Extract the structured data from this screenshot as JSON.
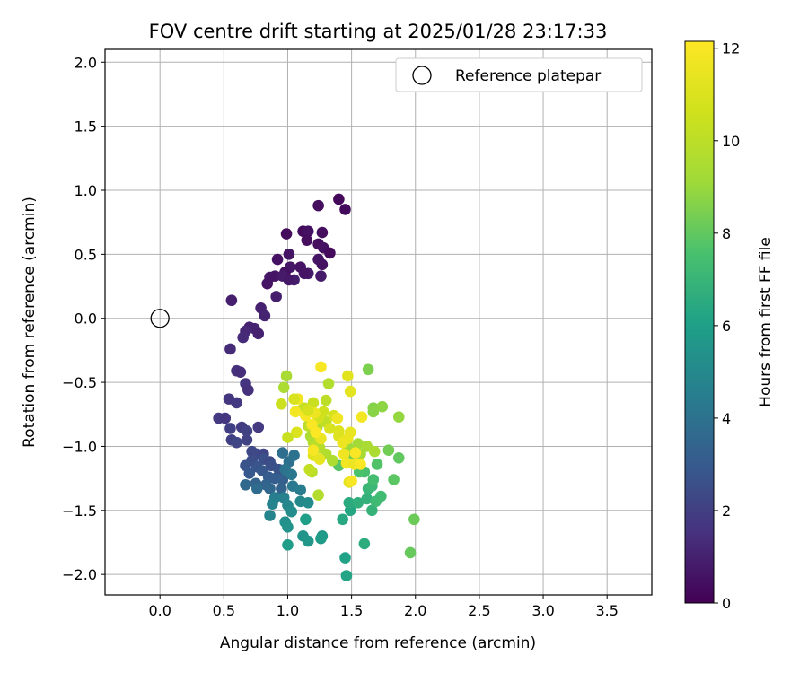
{
  "chart_data": {
    "type": "scatter",
    "title": "FOV centre drift starting at 2025/01/28 23:17:33",
    "xlabel": "Angular distance from reference (arcmin)",
    "ylabel": "Rotation from reference (arcmin)",
    "xlim": [
      -0.43,
      3.85
    ],
    "ylim": [
      -2.16,
      2.1
    ],
    "xticks": [
      0.0,
      0.5,
      1.0,
      1.5,
      2.0,
      2.5,
      3.0,
      3.5
    ],
    "xtick_labels": [
      "0.0",
      "0.5",
      "1.0",
      "1.5",
      "2.0",
      "2.5",
      "3.0",
      "3.5"
    ],
    "yticks": [
      -2.0,
      -1.5,
      -1.0,
      -0.5,
      0.0,
      0.5,
      1.0,
      1.5,
      2.0
    ],
    "ytick_labels": [
      "−2.0",
      "−1.5",
      "−1.0",
      "−0.5",
      "0.0",
      "0.5",
      "1.0",
      "1.5",
      "2.0"
    ],
    "grid": true,
    "legend": {
      "position": "top-right",
      "entries": [
        "Reference platepar"
      ]
    },
    "reference_point": {
      "x": 0.0,
      "y": 0.0,
      "label": "Reference platepar"
    },
    "colorbar": {
      "label": "Hours from first FF file",
      "colormap": "viridis",
      "range": [
        0,
        12.15
      ],
      "ticks": [
        0,
        2,
        4,
        6,
        8,
        10,
        12
      ],
      "tick_labels": [
        "0",
        "2",
        "4",
        "6",
        "8",
        "10",
        "12"
      ]
    },
    "points": [
      [
        1.4,
        0.93,
        0.2
      ],
      [
        1.45,
        0.85,
        0.3
      ],
      [
        1.24,
        0.88,
        0.4
      ],
      [
        1.12,
        0.68,
        0.3
      ],
      [
        1.16,
        0.68,
        0.5
      ],
      [
        1.27,
        0.67,
        0.4
      ],
      [
        0.99,
        0.66,
        0.3
      ],
      [
        1.15,
        0.61,
        0.4
      ],
      [
        1.24,
        0.58,
        0.4
      ],
      [
        1.28,
        0.55,
        0.5
      ],
      [
        1.01,
        0.5,
        0.6
      ],
      [
        1.33,
        0.51,
        0.3
      ],
      [
        0.92,
        0.46,
        0.5
      ],
      [
        1.24,
        0.46,
        0.6
      ],
      [
        1.27,
        0.42,
        0.5
      ],
      [
        1.02,
        0.4,
        0.7
      ],
      [
        1.1,
        0.4,
        0.6
      ],
      [
        0.98,
        0.36,
        0.5
      ],
      [
        1.16,
        0.35,
        0.8
      ],
      [
        1.13,
        0.35,
        0.6
      ],
      [
        0.86,
        0.32,
        0.7
      ],
      [
        0.9,
        0.33,
        0.6
      ],
      [
        0.96,
        0.33,
        0.8
      ],
      [
        1.05,
        0.3,
        0.9
      ],
      [
        1.01,
        0.3,
        0.7
      ],
      [
        1.26,
        0.33,
        0.8
      ],
      [
        0.84,
        0.27,
        0.6
      ],
      [
        0.91,
        0.17,
        0.9
      ],
      [
        0.56,
        0.14,
        0.9
      ],
      [
        0.79,
        0.08,
        1.0
      ],
      [
        0.82,
        0.02,
        1.1
      ],
      [
        0.7,
        -0.07,
        1.0
      ],
      [
        0.74,
        -0.08,
        1.1
      ],
      [
        0.67,
        -0.1,
        1.2
      ],
      [
        0.77,
        -0.12,
        1.0
      ],
      [
        0.65,
        -0.15,
        1.3
      ],
      [
        0.55,
        -0.24,
        1.3
      ],
      [
        0.6,
        -0.41,
        1.5
      ],
      [
        0.63,
        -0.42,
        1.4
      ],
      [
        0.67,
        -0.51,
        1.6
      ],
      [
        0.69,
        -0.56,
        1.5
      ],
      [
        0.54,
        -0.63,
        1.7
      ],
      [
        0.6,
        -0.66,
        1.8
      ],
      [
        0.46,
        -0.78,
        1.8
      ],
      [
        0.51,
        -0.78,
        1.7
      ],
      [
        0.64,
        -0.85,
        1.9
      ],
      [
        0.77,
        -0.85,
        1.8
      ],
      [
        0.55,
        -0.86,
        2.0
      ],
      [
        0.68,
        -0.88,
        2.1
      ],
      [
        0.56,
        -0.95,
        2.0
      ],
      [
        0.6,
        -0.97,
        2.2
      ],
      [
        0.68,
        -0.95,
        2.1
      ],
      [
        0.72,
        -1.04,
        2.3
      ],
      [
        0.76,
        -1.06,
        2.4
      ],
      [
        0.81,
        -1.06,
        2.2
      ],
      [
        0.72,
        -1.11,
        2.5
      ],
      [
        0.81,
        -1.1,
        2.6
      ],
      [
        0.86,
        -1.12,
        2.4
      ],
      [
        0.67,
        -1.15,
        2.7
      ],
      [
        0.76,
        -1.16,
        2.8
      ],
      [
        0.8,
        -1.19,
        2.9
      ],
      [
        0.87,
        -1.15,
        2.6
      ],
      [
        0.93,
        -1.18,
        2.7
      ],
      [
        0.7,
        -1.21,
        2.9
      ],
      [
        0.85,
        -1.24,
        3.0
      ],
      [
        0.9,
        -1.25,
        3.1
      ],
      [
        0.96,
        -1.26,
        3.2
      ],
      [
        0.75,
        -1.29,
        3.3
      ],
      [
        0.83,
        -1.3,
        3.4
      ],
      [
        0.86,
        -1.33,
        3.5
      ],
      [
        0.95,
        -1.33,
        3.3
      ],
      [
        0.67,
        -1.3,
        3.6
      ],
      [
        0.76,
        -1.33,
        3.7
      ],
      [
        0.96,
        -1.05,
        3.8
      ],
      [
        1.01,
        -1.12,
        3.9
      ],
      [
        1.05,
        -1.07,
        4.0
      ],
      [
        0.98,
        -1.18,
        4.1
      ],
      [
        1.03,
        -1.22,
        4.2
      ],
      [
        1.04,
        -1.31,
        4.3
      ],
      [
        1.1,
        -1.34,
        4.4
      ],
      [
        0.9,
        -1.4,
        4.5
      ],
      [
        0.97,
        -1.4,
        4.6
      ],
      [
        0.88,
        -1.45,
        4.7
      ],
      [
        0.86,
        -1.54,
        4.8
      ],
      [
        1.0,
        -1.46,
        4.9
      ],
      [
        1.1,
        -1.43,
        5.0
      ],
      [
        1.16,
        -1.44,
        5.1
      ],
      [
        1.03,
        -1.51,
        5.2
      ],
      [
        0.98,
        -1.59,
        5.3
      ],
      [
        1.0,
        -1.63,
        5.4
      ],
      [
        1.12,
        -1.7,
        5.5
      ],
      [
        1.16,
        -1.74,
        5.6
      ],
      [
        1.27,
        -1.7,
        5.7
      ],
      [
        1.26,
        -1.72,
        5.8
      ],
      [
        1.0,
        -1.77,
        5.9
      ],
      [
        1.14,
        -1.57,
        6.0
      ],
      [
        1.45,
        -1.87,
        6.1
      ],
      [
        1.46,
        -2.01,
        6.2
      ],
      [
        1.49,
        -1.5,
        6.3
      ],
      [
        1.43,
        -1.57,
        6.4
      ],
      [
        1.48,
        -1.44,
        6.5
      ],
      [
        1.6,
        -1.76,
        6.6
      ],
      [
        1.55,
        -1.44,
        6.7
      ],
      [
        1.62,
        -1.41,
        6.8
      ],
      [
        1.66,
        -1.5,
        6.9
      ],
      [
        1.63,
        -1.33,
        7.0
      ],
      [
        1.66,
        -1.31,
        7.1
      ],
      [
        1.69,
        -1.43,
        7.2
      ],
      [
        1.73,
        -1.39,
        7.3
      ],
      [
        1.67,
        -1.26,
        7.4
      ],
      [
        1.6,
        -1.2,
        7.5
      ],
      [
        1.56,
        -1.2,
        7.6
      ],
      [
        1.7,
        -1.14,
        7.7
      ],
      [
        1.4,
        -1.15,
        7.8
      ],
      [
        1.83,
        -1.26,
        7.9
      ],
      [
        1.87,
        -1.09,
        8.0
      ],
      [
        1.96,
        -1.83,
        8.1
      ],
      [
        1.99,
        -1.57,
        8.2
      ],
      [
        1.79,
        -1.03,
        8.3
      ],
      [
        1.5,
        -1.08,
        8.4
      ],
      [
        1.63,
        -0.4,
        8.5
      ],
      [
        1.67,
        -0.7,
        8.6
      ],
      [
        1.67,
        -0.73,
        8.7
      ],
      [
        1.74,
        -0.69,
        8.8
      ],
      [
        1.87,
        -0.77,
        8.9
      ],
      [
        1.53,
        -1.04,
        9.0
      ],
      [
        1.47,
        -1.01,
        9.1
      ],
      [
        1.55,
        -0.98,
        9.2
      ],
      [
        1.57,
        -1.06,
        9.3
      ],
      [
        1.62,
        -1.0,
        9.4
      ],
      [
        1.68,
        -1.04,
        9.5
      ],
      [
        1.35,
        -1.11,
        9.6
      ],
      [
        1.3,
        -1.06,
        9.7
      ],
      [
        1.25,
        -1.01,
        9.8
      ],
      [
        1.2,
        -0.97,
        9.9
      ],
      [
        1.18,
        -0.92,
        9.6
      ],
      [
        1.23,
        -0.85,
        9.8
      ],
      [
        1.16,
        -0.84,
        10.0
      ],
      [
        1.3,
        -0.81,
        10.1
      ],
      [
        1.1,
        -0.72,
        10.2
      ],
      [
        1.13,
        -0.7,
        10.3
      ],
      [
        1.2,
        -0.66,
        10.4
      ],
      [
        0.95,
        -0.67,
        10.5
      ],
      [
        0.99,
        -0.45,
        9.4
      ],
      [
        0.97,
        -0.54,
        9.5
      ],
      [
        1.32,
        -0.51,
        9.7
      ],
      [
        1.3,
        -0.64,
        10.0
      ],
      [
        1.28,
        -0.73,
        10.6
      ],
      [
        1.24,
        -0.78,
        10.7
      ],
      [
        1.36,
        -0.76,
        10.8
      ],
      [
        1.33,
        -0.86,
        10.9
      ],
      [
        1.4,
        -0.88,
        11.0
      ],
      [
        1.4,
        -0.92,
        11.1
      ],
      [
        1.47,
        -0.45,
        11.2
      ],
      [
        1.49,
        -0.57,
        11.3
      ],
      [
        1.49,
        -0.89,
        11.4
      ],
      [
        1.47,
        -0.94,
        11.5
      ],
      [
        1.43,
        -0.97,
        11.6
      ],
      [
        1.44,
        -1.06,
        11.7
      ],
      [
        1.46,
        -1.13,
        11.8
      ],
      [
        1.26,
        -0.38,
        11.9
      ],
      [
        1.2,
        -1.07,
        11.2
      ],
      [
        1.25,
        -1.1,
        11.4
      ],
      [
        1.26,
        -0.94,
        11.5
      ],
      [
        1.21,
        -0.74,
        11.6
      ],
      [
        1.08,
        -0.63,
        11.7
      ],
      [
        1.06,
        -0.73,
        11.8
      ],
      [
        1.14,
        -0.76,
        11.9
      ],
      [
        1.19,
        -0.83,
        12.0
      ],
      [
        1.22,
        -0.89,
        12.1
      ],
      [
        1.07,
        -0.89,
        11.0
      ],
      [
        1.19,
        -1.2,
        9.9
      ],
      [
        1.24,
        -1.38,
        9.7
      ],
      [
        1.17,
        -1.18,
        10.2
      ],
      [
        1.0,
        -0.93,
        10.4
      ],
      [
        1.48,
        -1.28,
        11.3
      ],
      [
        1.52,
        -1.14,
        11.6
      ],
      [
        1.58,
        -0.77,
        11.8
      ],
      [
        1.53,
        -1.05,
        12.0
      ],
      [
        1.57,
        -1.14,
        12.1
      ],
      [
        1.39,
        -0.78,
        11.7
      ],
      [
        1.5,
        -1.27,
        11.9
      ],
      [
        1.2,
        -1.03,
        11.9
      ],
      [
        1.05,
        -0.63,
        10.9
      ],
      [
        1.16,
        -0.72,
        10.8
      ]
    ]
  }
}
